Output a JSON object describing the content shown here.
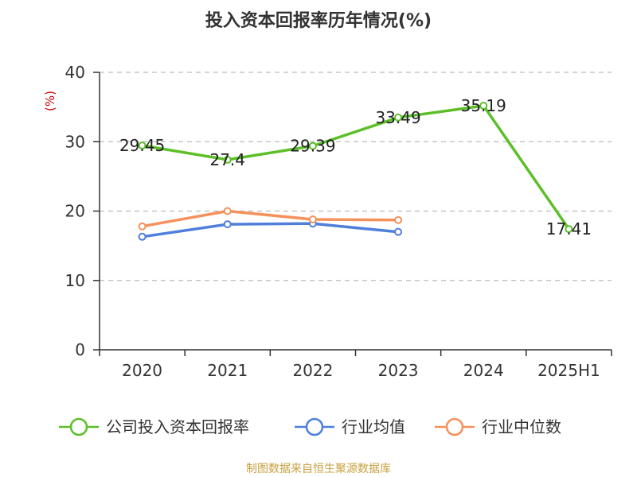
{
  "title": "投入资本回报率历年情况(%)",
  "ylabel": "(%)",
  "source": "制图数据来自恒生聚源数据库",
  "chart_data": {
    "type": "line",
    "title": "投入资本回报率历年情况(%)",
    "xlabel": "",
    "ylabel": "(%)",
    "categories": [
      "2020",
      "2021",
      "2022",
      "2023",
      "2024",
      "2025H1"
    ],
    "ylim": [
      0,
      40
    ],
    "yticks": [
      0,
      10,
      20,
      30,
      40
    ],
    "grid": true,
    "legend_position": "bottom",
    "series": [
      {
        "name": "公司投入资本回报率",
        "color": "#5cbf28",
        "values": [
          29.45,
          27.4,
          29.39,
          33.49,
          35.19,
          17.41
        ],
        "labels": [
          "29.45",
          "27.4",
          "29.39",
          "33.49",
          "35.19",
          "17.41"
        ],
        "show_labels": true
      },
      {
        "name": "行业均值",
        "color": "#4f7fdb",
        "values": [
          16.3,
          18.1,
          18.2,
          17.0,
          null,
          null
        ],
        "show_labels": false
      },
      {
        "name": "行业中位数",
        "color": "#f5915b",
        "values": [
          17.8,
          20.0,
          18.8,
          18.7,
          null,
          null
        ],
        "show_labels": false
      }
    ]
  }
}
